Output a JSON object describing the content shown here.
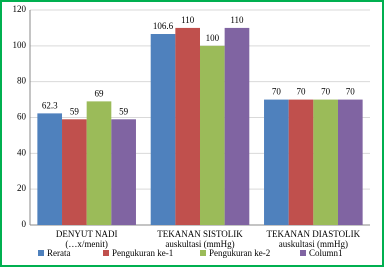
{
  "chart_data": {
    "type": "bar",
    "categories": [
      "DENYUT NADI\n(…x/menit)",
      "TEKANAN SISTOLIK\nauskultasi (mmHg)",
      "TEKANAN DIASTOLIK\nauskultasi (mmHg)"
    ],
    "series": [
      {
        "name": "Rerata",
        "color": "#4f81bd",
        "values": [
          62.3,
          106.6,
          70
        ]
      },
      {
        "name": "Pengukuran ke-1",
        "color": "#c0504d",
        "values": [
          59,
          110,
          70
        ]
      },
      {
        "name": "Pengukuran ke-2",
        "color": "#9bbb59",
        "values": [
          69,
          100,
          70
        ]
      },
      {
        "name": "Column1",
        "color": "#8064a2",
        "values": [
          59,
          110,
          70
        ]
      }
    ],
    "ylim": [
      0,
      120
    ],
    "yticks": [
      0,
      20,
      40,
      60,
      80,
      100,
      120
    ],
    "grid": true,
    "legend": "bottom"
  }
}
